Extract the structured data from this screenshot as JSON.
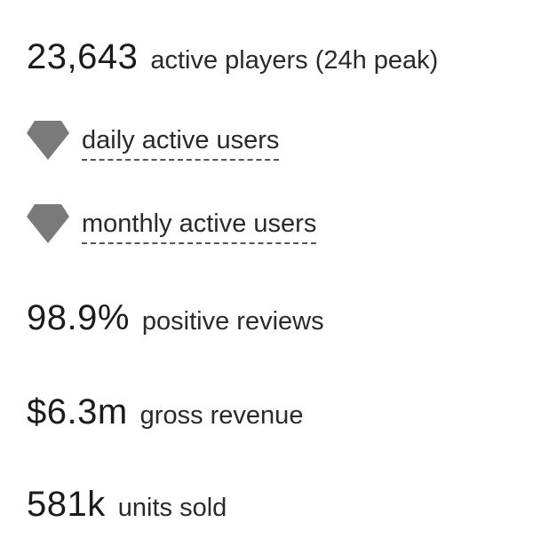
{
  "stats": {
    "peak_players": {
      "value": "23,643",
      "label": "active players (24h peak)"
    },
    "dau": {
      "icon": "diamond-icon",
      "label": "daily active users"
    },
    "mau": {
      "icon": "diamond-icon",
      "label": "monthly active users"
    },
    "reviews": {
      "value": "98.9%",
      "label": "positive reviews"
    },
    "revenue": {
      "value": "$6.3m",
      "label": "gross revenue"
    },
    "units": {
      "value": "581k",
      "label": "units sold"
    }
  },
  "colors": {
    "icon": "#7a7a7a",
    "text": "#1f1f1f",
    "underline": "#555555"
  }
}
